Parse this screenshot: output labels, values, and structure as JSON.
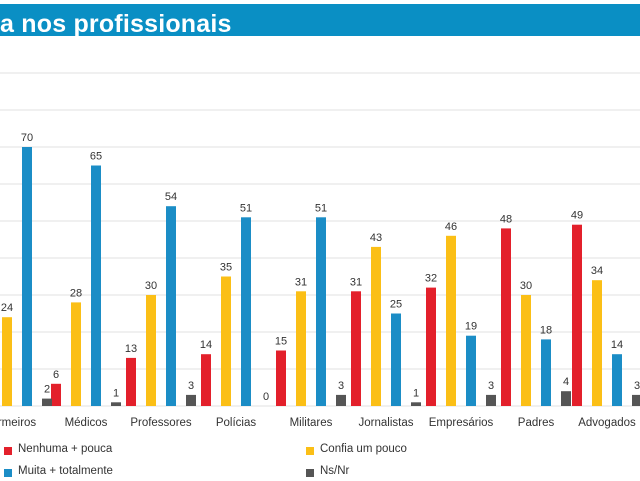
{
  "header": {
    "title": "a nos profissionais",
    "band_color": "#0a8fc4"
  },
  "chart_data": {
    "type": "bar",
    "title": "a nos profissionais",
    "xlabel": "",
    "ylabel": "",
    "ylim": [
      0,
      70
    ],
    "grid": true,
    "legend_position": "bottom",
    "categories": [
      "Enfermeiros",
      "Médicos",
      "Professores",
      "Polícias",
      "Militares",
      "Jornalistas",
      "Empresários",
      "Padres",
      "Advogados"
    ],
    "category_labels_visible": [
      "rmeiros",
      "Médicos",
      "Professores",
      "Polícias",
      "Militares",
      "Jornalistas",
      "Empresários",
      "Padres",
      "Advogados"
    ],
    "series": [
      {
        "name": "Nenhuma + pouca",
        "color": "#e3202b",
        "values": [
          null,
          6,
          13,
          14,
          15,
          31,
          32,
          48,
          49
        ]
      },
      {
        "name": "Confia um pouco",
        "color": "#fbbf16",
        "values": [
          24,
          28,
          30,
          35,
          31,
          43,
          46,
          30,
          34
        ]
      },
      {
        "name": "Muita + totalmente",
        "color": "#1b8dc6",
        "values": [
          70,
          65,
          54,
          51,
          51,
          25,
          19,
          18,
          14
        ]
      },
      {
        "name": "Ns/Nr",
        "color": "#555555",
        "values": [
          2,
          1,
          3,
          0,
          3,
          1,
          3,
          4,
          3
        ]
      }
    ]
  },
  "legend": {
    "items": [
      {
        "label": "Nenhuma + pouca",
        "color": "#e3202b"
      },
      {
        "label": "Confia um pouco",
        "color": "#fbbf16"
      },
      {
        "label": "Muita + totalmente",
        "color": "#1b8dc6"
      },
      {
        "label": "Ns/Nr",
        "color": "#555555"
      }
    ]
  }
}
